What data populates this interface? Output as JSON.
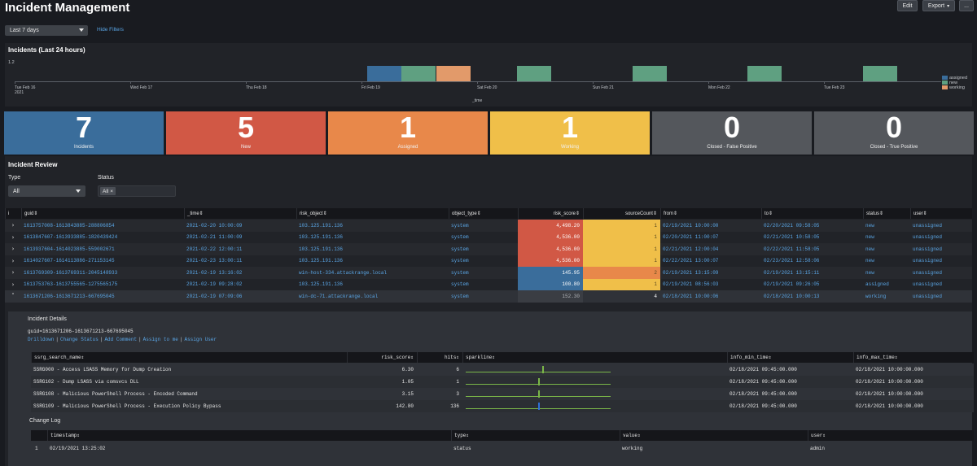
{
  "header": {
    "title": "Incident Management",
    "edit_label": "Edit",
    "export_label": "Export",
    "more_label": "..."
  },
  "filters": {
    "time_range": "Last 7 days",
    "hide_filters": "Hide Filters"
  },
  "timeline": {
    "title": "Incidents (Last 24 hours)",
    "y_max": "1.2",
    "x_label": "_time",
    "year": "2021",
    "ticks": [
      "Tue Feb 16",
      "Wed Feb 17",
      "Thu Feb 18",
      "Fri Feb 19",
      "Sat Feb 20",
      "Sun Feb 21",
      "Mon Feb 22",
      "Tue Feb 23"
    ],
    "legend": [
      {
        "label": "assigned",
        "color": "#3a6d9b"
      },
      {
        "label": "new",
        "color": "#5fa081"
      },
      {
        "label": "working",
        "color": "#e29a6a"
      }
    ]
  },
  "chart_data": {
    "type": "bar",
    "title": "Incidents (Last 24 hours)",
    "xlabel": "_time",
    "ylabel": "",
    "ylim": [
      0,
      1.2
    ],
    "categories": [
      "2021-02-19 06:00",
      "2021-02-19 12:00",
      "2021-02-19 18:00",
      "2021-02-20",
      "2021-02-21",
      "2021-02-22",
      "2021-02-23"
    ],
    "series": [
      {
        "name": "assigned",
        "values": [
          1,
          0,
          0,
          0,
          0,
          0,
          0
        ]
      },
      {
        "name": "new",
        "values": [
          0,
          1,
          0,
          1,
          1,
          1,
          1
        ]
      },
      {
        "name": "working",
        "values": [
          0,
          0,
          1,
          0,
          0,
          0,
          0
        ]
      }
    ]
  },
  "single_values": [
    {
      "value": "7",
      "label": "Incidents",
      "color": "#3a6d9b"
    },
    {
      "value": "5",
      "label": "New",
      "color": "#d15845"
    },
    {
      "value": "1",
      "label": "Assigned",
      "color": "#e8884a"
    },
    {
      "value": "1",
      "label": "Working",
      "color": "#f0bf49"
    },
    {
      "value": "0",
      "label": "Closed - False Positive",
      "color": "#54575c"
    },
    {
      "value": "0",
      "label": "Closed - True Positive",
      "color": "#54575c"
    }
  ],
  "review": {
    "title": "Incident Review",
    "type_label": "Type",
    "type_value": "All",
    "status_label": "Status",
    "status_chip": "All",
    "columns": [
      "i",
      "guid",
      "_time",
      "risk_object",
      "object_type",
      "risk_score",
      "sourceCount",
      "from",
      "to",
      "status",
      "user"
    ],
    "rows": [
      {
        "guid": "1613757008-1613843885-288806854",
        "time": "2021-02-20 10:00:09",
        "risk_object": "103.125.191.136",
        "object_type": "system",
        "risk_score": "4,498.20",
        "sourceCount": "1",
        "from": "02/19/2021 10:00:00",
        "to": "02/20/2021 09:58:05",
        "status": "new",
        "user": "unassigned"
      },
      {
        "guid": "1613847607-1613933885-1820439424",
        "time": "2021-02-21 11:00:09",
        "risk_object": "103.125.191.136",
        "object_type": "system",
        "risk_score": "4,536.00",
        "sourceCount": "1",
        "from": "02/20/2021 11:00:07",
        "to": "02/21/2021 10:58:05",
        "status": "new",
        "user": "unassigned"
      },
      {
        "guid": "1613937604-1614023885-559002671",
        "time": "2021-02-22 12:00:11",
        "risk_object": "103.125.191.136",
        "object_type": "system",
        "risk_score": "4,536.00",
        "sourceCount": "1",
        "from": "02/21/2021 12:00:04",
        "to": "02/22/2021 11:58:05",
        "status": "new",
        "user": "unassigned"
      },
      {
        "guid": "1614027607-1614113886-271153145",
        "time": "2021-02-23 13:00:11",
        "risk_object": "103.125.191.136",
        "object_type": "system",
        "risk_score": "4,536.00",
        "sourceCount": "1",
        "from": "02/22/2021 13:00:07",
        "to": "02/23/2021 12:58:06",
        "status": "new",
        "user": "unassigned"
      },
      {
        "guid": "1613769309-1613769311-2045148933",
        "time": "2021-02-19 13:16:02",
        "risk_object": "win-host-334.attackrange.local",
        "object_type": "system",
        "risk_score": "145.95",
        "sourceCount": "2",
        "from": "02/19/2021 13:15:09",
        "to": "02/19/2021 13:15:11",
        "status": "new",
        "user": "unassigned"
      },
      {
        "guid": "1613753763-1613755565-1275565175",
        "time": "2021-02-19 09:28:02",
        "risk_object": "103.125.191.136",
        "object_type": "system",
        "risk_score": "100.80",
        "sourceCount": "1",
        "from": "02/19/2021 08:56:03",
        "to": "02/19/2021 09:26:05",
        "status": "assigned",
        "user": "unassigned"
      },
      {
        "guid": "1613671206-1613671213-667695045",
        "time": "2021-02-19 07:09:06",
        "risk_object": "win-dc-71.attackrange.local",
        "object_type": "system",
        "risk_score": "152.30",
        "sourceCount": "4",
        "from": "02/18/2021 10:00:06",
        "to": "02/18/2021 10:00:13",
        "status": "working",
        "user": "unassigned"
      }
    ]
  },
  "details": {
    "title": "Incident Details",
    "guid_line": "guid=1613671206-1613671213-667695045",
    "actions": [
      "Drilldown",
      "Change Status",
      "Add Comment",
      "Assign to me",
      "Assign User"
    ],
    "columns": [
      "ssrg_search_name",
      "risk_score",
      "hits",
      "sparkline",
      "info_min_time",
      "info_max_time"
    ],
    "rows": [
      {
        "name": "SSRG000 - Access LSASS Memory for Dump Creation",
        "risk_score": "6.30",
        "hits": "6",
        "spark_pos": 0.53,
        "spark_color": "#7ab648",
        "min": "02/18/2021 09:45:00.000",
        "max": "02/18/2021 10:00:00.000"
      },
      {
        "name": "SSRG102 - Dump LSASS via comsvcs DLL",
        "risk_score": "1.05",
        "hits": "1",
        "spark_pos": 0.5,
        "spark_color": "#7ab648",
        "min": "02/18/2021 09:45:00.000",
        "max": "02/18/2021 10:00:00.000"
      },
      {
        "name": "SSRG108 - Malicious PowerShell Process - Encoded Command",
        "risk_score": "3.15",
        "hits": "3",
        "spark_pos": 0.5,
        "spark_color": "#7ab648",
        "min": "02/18/2021 09:45:00.000",
        "max": "02/18/2021 10:00:00.000"
      },
      {
        "name": "SSRG109 - Malicious PowerShell Process - Execution Policy Bypass",
        "risk_score": "142.80",
        "hits": "136",
        "spark_pos": 0.5,
        "spark_color": "#2e6fd9",
        "min": "02/18/2021 09:45:00.000",
        "max": "02/18/2021 10:00:00.000"
      }
    ],
    "changelog_title": "Change Log",
    "changelog_columns": [
      "timestamp",
      "type",
      "value",
      "user"
    ],
    "changelog_rows": [
      {
        "index": "1",
        "timestamp": "02/19/2021 13:25:02",
        "type": "status",
        "value": "working",
        "user": "admin"
      }
    ]
  }
}
